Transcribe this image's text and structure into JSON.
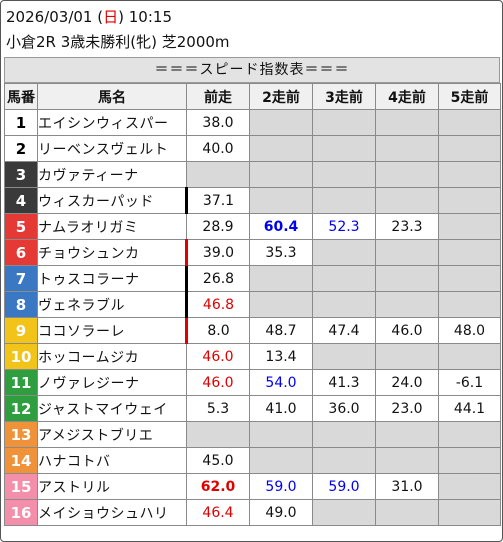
{
  "header": {
    "date": "2026/03/01",
    "weekday_open": "(",
    "weekday": "日",
    "weekday_close": ")",
    "time": "10:15",
    "race": "小倉2R 3歳未勝利(牝) 芝2000m"
  },
  "title": "＝＝＝スピード指数表＝＝＝",
  "columns": [
    "馬番",
    "馬名",
    "前走",
    "2走前",
    "3走前",
    "4走前",
    "5走前"
  ],
  "colors": {
    "red": "#e00000",
    "blue": "#0000ee",
    "empty_cell": "#d9d9d9",
    "header_cell": "#f0f0f0"
  },
  "rows": [
    {
      "num": "1",
      "name": "エイシンウィスパー",
      "bg": "#ffffff",
      "fg": "#000000",
      "mark": "",
      "cells": [
        {
          "v": "38.0"
        },
        {
          "v": ""
        },
        {
          "v": ""
        },
        {
          "v": ""
        },
        {
          "v": ""
        }
      ]
    },
    {
      "num": "2",
      "name": "リーベンスヴェルト",
      "bg": "#ffffff",
      "fg": "#000000",
      "mark": "",
      "cells": [
        {
          "v": "40.0"
        },
        {
          "v": ""
        },
        {
          "v": ""
        },
        {
          "v": ""
        },
        {
          "v": ""
        }
      ]
    },
    {
      "num": "3",
      "name": "カヴァティーナ",
      "bg": "#3a3a3a",
      "fg": "#ffffff",
      "mark": "",
      "cells": [
        {
          "v": ""
        },
        {
          "v": ""
        },
        {
          "v": ""
        },
        {
          "v": ""
        },
        {
          "v": ""
        }
      ]
    },
    {
      "num": "4",
      "name": "ウィスカーパッド",
      "bg": "#3a3a3a",
      "fg": "#ffffff",
      "mark": "black",
      "cells": [
        {
          "v": "37.1"
        },
        {
          "v": ""
        },
        {
          "v": ""
        },
        {
          "v": ""
        },
        {
          "v": ""
        }
      ]
    },
    {
      "num": "5",
      "name": "ナムラオリガミ",
      "bg": "#e53935",
      "fg": "#ffffff",
      "mark": "",
      "cells": [
        {
          "v": "28.9"
        },
        {
          "v": "60.4",
          "c": "blue",
          "b": true
        },
        {
          "v": "52.3",
          "c": "blue"
        },
        {
          "v": "23.3"
        },
        {
          "v": ""
        }
      ]
    },
    {
      "num": "6",
      "name": "チョウシュンカ",
      "bg": "#e53935",
      "fg": "#ffffff",
      "mark": "red",
      "cells": [
        {
          "v": "39.0"
        },
        {
          "v": "35.3"
        },
        {
          "v": ""
        },
        {
          "v": ""
        },
        {
          "v": ""
        }
      ]
    },
    {
      "num": "7",
      "name": "トゥスコラーナ",
      "bg": "#3b78c4",
      "fg": "#ffffff",
      "mark": "black",
      "cells": [
        {
          "v": "26.8"
        },
        {
          "v": ""
        },
        {
          "v": ""
        },
        {
          "v": ""
        },
        {
          "v": ""
        }
      ]
    },
    {
      "num": "8",
      "name": "ヴェネラブル",
      "bg": "#3b78c4",
      "fg": "#ffffff",
      "mark": "black",
      "cells": [
        {
          "v": "46.8",
          "c": "red"
        },
        {
          "v": ""
        },
        {
          "v": ""
        },
        {
          "v": ""
        },
        {
          "v": ""
        }
      ]
    },
    {
      "num": "9",
      "name": "ココソラーレ",
      "bg": "#f2c318",
      "fg": "#ffffff",
      "mark": "red",
      "cells": [
        {
          "v": "8.0"
        },
        {
          "v": "48.7"
        },
        {
          "v": "47.4"
        },
        {
          "v": "46.0"
        },
        {
          "v": "48.0"
        }
      ]
    },
    {
      "num": "10",
      "name": "ホッコームジカ",
      "bg": "#f2c318",
      "fg": "#ffffff",
      "mark": "",
      "cells": [
        {
          "v": "46.0",
          "c": "red"
        },
        {
          "v": "13.4"
        },
        {
          "v": ""
        },
        {
          "v": ""
        },
        {
          "v": ""
        }
      ]
    },
    {
      "num": "11",
      "name": "ノヴァレジーナ",
      "bg": "#2e9e3e",
      "fg": "#ffffff",
      "mark": "",
      "cells": [
        {
          "v": "46.0",
          "c": "red"
        },
        {
          "v": "54.0",
          "c": "blue"
        },
        {
          "v": "41.3"
        },
        {
          "v": "24.0"
        },
        {
          "v": "-6.1"
        }
      ]
    },
    {
      "num": "12",
      "name": "ジャストマイウェイ",
      "bg": "#2e9e3e",
      "fg": "#ffffff",
      "mark": "",
      "cells": [
        {
          "v": "5.3"
        },
        {
          "v": "41.0"
        },
        {
          "v": "36.0"
        },
        {
          "v": "23.0"
        },
        {
          "v": "44.1"
        }
      ]
    },
    {
      "num": "13",
      "name": "アメジストブリエ",
      "bg": "#f0923a",
      "fg": "#ffffff",
      "mark": "",
      "cells": [
        {
          "v": ""
        },
        {
          "v": ""
        },
        {
          "v": ""
        },
        {
          "v": ""
        },
        {
          "v": ""
        }
      ]
    },
    {
      "num": "14",
      "name": "ハナコトバ",
      "bg": "#f0923a",
      "fg": "#ffffff",
      "mark": "",
      "cells": [
        {
          "v": "45.0"
        },
        {
          "v": ""
        },
        {
          "v": ""
        },
        {
          "v": ""
        },
        {
          "v": ""
        }
      ]
    },
    {
      "num": "15",
      "name": "アストリル",
      "bg": "#f38eab",
      "fg": "#ffffff",
      "mark": "",
      "cells": [
        {
          "v": "62.0",
          "c": "red",
          "b": true
        },
        {
          "v": "59.0",
          "c": "blue"
        },
        {
          "v": "59.0",
          "c": "blue"
        },
        {
          "v": "31.0"
        },
        {
          "v": ""
        }
      ]
    },
    {
      "num": "16",
      "name": "メイショウシュハリ",
      "bg": "#f38eab",
      "fg": "#ffffff",
      "mark": "",
      "cells": [
        {
          "v": "46.4",
          "c": "red"
        },
        {
          "v": "49.0"
        },
        {
          "v": ""
        },
        {
          "v": ""
        },
        {
          "v": ""
        }
      ]
    }
  ]
}
